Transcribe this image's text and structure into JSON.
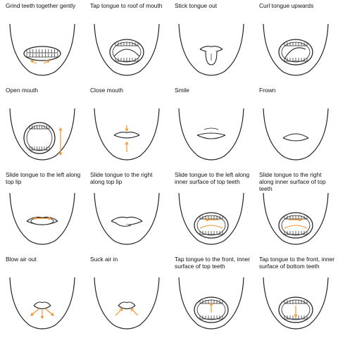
{
  "panels": [
    {
      "label": "Grind teeth together gently",
      "kind": "grind"
    },
    {
      "label": "Tap tongue to roof of mouth",
      "kind": "roof"
    },
    {
      "label": "Stick tongue out",
      "kind": "tongue-out"
    },
    {
      "label": "Curl tongue upwards",
      "kind": "curl"
    },
    {
      "label": "Open mouth",
      "kind": "open"
    },
    {
      "label": "Close mouth",
      "kind": "close"
    },
    {
      "label": "Smile",
      "kind": "smile"
    },
    {
      "label": "Frown",
      "kind": "frown"
    },
    {
      "label": "Slide tongue to the left along top lip",
      "kind": "lip-left"
    },
    {
      "label": "Slide tongue to the right along top lip",
      "kind": "lip-right"
    },
    {
      "label": "Slide tongue to the left along inner surface of top teeth",
      "kind": "teeth-left"
    },
    {
      "label": "Slide tongue to the right along inner surface of top teeth",
      "kind": "teeth-right"
    },
    {
      "label": "Blow air out",
      "kind": "blow"
    },
    {
      "label": "Suck air in",
      "kind": "suck"
    },
    {
      "label": "Tap tongue to the front, inner surface of top teeth",
      "kind": "tap-top"
    },
    {
      "label": "Tap tongue to the front, inner surface of bottom teeth",
      "kind": "tap-bottom"
    }
  ],
  "colors": {
    "line": "#222222",
    "arrow": "#f0952f",
    "tongue": "#ffffff"
  }
}
